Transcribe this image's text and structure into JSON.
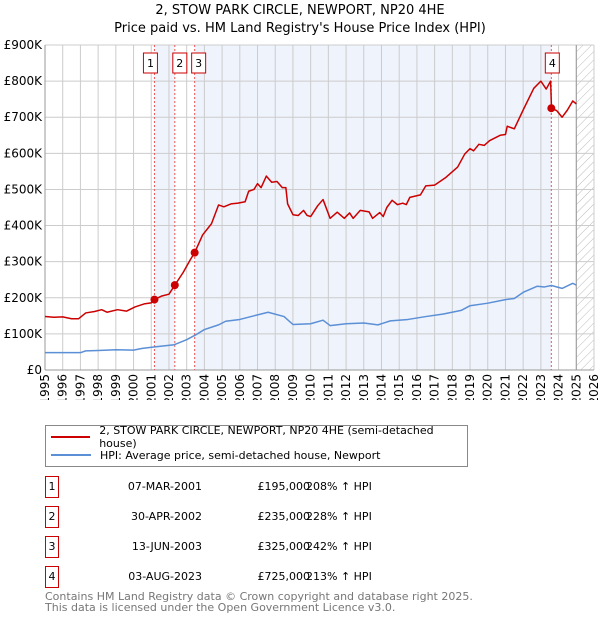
{
  "title_line1": "2, STOW PARK CIRCLE, NEWPORT, NP20 4HE",
  "title_line2": "Price paid vs. HM Land Registry's House Price Index (HPI)",
  "colors": {
    "property": "#cc0000",
    "hpi": "#5b8fd6",
    "shade": "#eef3fc"
  },
  "chart_data": {
    "type": "line",
    "xlim": [
      1995,
      2026
    ],
    "ylim": [
      0,
      900000
    ],
    "y_ticks": [
      {
        "v": 0,
        "label": "£0"
      },
      {
        "v": 100000,
        "label": "£100K"
      },
      {
        "v": 200000,
        "label": "£200K"
      },
      {
        "v": 300000,
        "label": "£300K"
      },
      {
        "v": 400000,
        "label": "£400K"
      },
      {
        "v": 500000,
        "label": "£500K"
      },
      {
        "v": 600000,
        "label": "£600K"
      },
      {
        "v": 700000,
        "label": "£700K"
      },
      {
        "v": 800000,
        "label": "£800K"
      },
      {
        "v": 900000,
        "label": "£900K"
      }
    ],
    "x_ticks": [
      "1995",
      "1996",
      "1997",
      "1998",
      "1999",
      "2000",
      "2001",
      "2002",
      "2003",
      "2004",
      "2005",
      "2006",
      "2007",
      "2008",
      "2009",
      "2010",
      "2011",
      "2012",
      "2013",
      "2014",
      "2015",
      "2016",
      "2017",
      "2018",
      "2019",
      "2020",
      "2021",
      "2022",
      "2023",
      "2024",
      "2025",
      "2026"
    ],
    "data_end_year": 2025,
    "series": [
      {
        "name": "2, STOW PARK CIRCLE, NEWPORT, NP20 4HE (semi-detached house)",
        "color": "#cc0000",
        "points": [
          [
            1995,
            148
          ],
          [
            1995.5,
            146
          ],
          [
            1996,
            147
          ],
          [
            1996.5,
            142
          ],
          [
            1996.9,
            142
          ],
          [
            1997.3,
            158
          ],
          [
            1997.8,
            162
          ],
          [
            1998.2,
            167
          ],
          [
            1998.5,
            160
          ],
          [
            1999.1,
            167
          ],
          [
            1999.6,
            163
          ],
          [
            2000.1,
            175
          ],
          [
            2000.6,
            183
          ],
          [
            2001.0,
            186
          ],
          [
            2001.18,
            195
          ],
          [
            2001.6,
            205
          ],
          [
            2002.0,
            210
          ],
          [
            2002.33,
            235
          ],
          [
            2002.8,
            270
          ],
          [
            2003.2,
            305
          ],
          [
            2003.45,
            325
          ],
          [
            2003.9,
            374
          ],
          [
            2004.4,
            405
          ],
          [
            2004.8,
            457
          ],
          [
            2005.1,
            452
          ],
          [
            2005.5,
            460
          ],
          [
            2005.9,
            462
          ],
          [
            2006.3,
            466
          ],
          [
            2006.5,
            495
          ],
          [
            2006.8,
            500
          ],
          [
            2007.0,
            516
          ],
          [
            2007.2,
            505
          ],
          [
            2007.5,
            537
          ],
          [
            2007.8,
            520
          ],
          [
            2008.1,
            522
          ],
          [
            2008.4,
            505
          ],
          [
            2008.6,
            505
          ],
          [
            2008.7,
            460
          ],
          [
            2009.0,
            430
          ],
          [
            2009.3,
            428
          ],
          [
            2009.6,
            442
          ],
          [
            2009.8,
            428
          ],
          [
            2010.0,
            425
          ],
          [
            2010.4,
            455
          ],
          [
            2010.7,
            472
          ],
          [
            2011.1,
            420
          ],
          [
            2011.5,
            437
          ],
          [
            2011.9,
            420
          ],
          [
            2012.2,
            435
          ],
          [
            2012.4,
            420
          ],
          [
            2012.8,
            442
          ],
          [
            2013.3,
            438
          ],
          [
            2013.5,
            420
          ],
          [
            2013.9,
            436
          ],
          [
            2014.1,
            425
          ],
          [
            2014.3,
            450
          ],
          [
            2014.6,
            470
          ],
          [
            2014.9,
            458
          ],
          [
            2015.2,
            462
          ],
          [
            2015.4,
            458
          ],
          [
            2015.6,
            478
          ],
          [
            2016.2,
            485
          ],
          [
            2016.5,
            510
          ],
          [
            2017.0,
            512
          ],
          [
            2017.6,
            532
          ],
          [
            2018.3,
            562
          ],
          [
            2018.7,
            598
          ],
          [
            2019.0,
            613
          ],
          [
            2019.2,
            607
          ],
          [
            2019.5,
            625
          ],
          [
            2019.8,
            622
          ],
          [
            2020.1,
            635
          ],
          [
            2020.7,
            650
          ],
          [
            2021.0,
            652
          ],
          [
            2021.1,
            675
          ],
          [
            2021.5,
            668
          ],
          [
            2022.0,
            720
          ],
          [
            2022.6,
            780
          ],
          [
            2023.0,
            800
          ],
          [
            2023.3,
            778
          ],
          [
            2023.55,
            800
          ],
          [
            2023.6,
            725
          ],
          [
            2023.9,
            718
          ],
          [
            2024.2,
            700
          ],
          [
            2024.5,
            720
          ],
          [
            2024.8,
            745
          ],
          [
            2025.0,
            737
          ]
        ]
      },
      {
        "name": "HPI: Average price, semi-detached house, Newport",
        "color": "#5b8fd6",
        "points": [
          [
            1995,
            48
          ],
          [
            1996,
            48
          ],
          [
            1997,
            48
          ],
          [
            1997.3,
            53
          ],
          [
            1998,
            54
          ],
          [
            1999,
            56
          ],
          [
            2000,
            55
          ],
          [
            2000.5,
            60
          ],
          [
            2001.2,
            64
          ],
          [
            2002.3,
            70
          ],
          [
            2003,
            84
          ],
          [
            2003.5,
            97
          ],
          [
            2004,
            112
          ],
          [
            2004.8,
            125
          ],
          [
            2005.2,
            135
          ],
          [
            2006,
            140
          ],
          [
            2006.8,
            150
          ],
          [
            2007.6,
            160
          ],
          [
            2008.5,
            148
          ],
          [
            2009,
            126
          ],
          [
            2010,
            128
          ],
          [
            2010.7,
            138
          ],
          [
            2011.1,
            123
          ],
          [
            2012,
            128
          ],
          [
            2013,
            130
          ],
          [
            2013.8,
            125
          ],
          [
            2014.5,
            136
          ],
          [
            2015.5,
            140
          ],
          [
            2016.5,
            148
          ],
          [
            2017.5,
            155
          ],
          [
            2018.5,
            165
          ],
          [
            2019,
            178
          ],
          [
            2020,
            185
          ],
          [
            2021,
            195
          ],
          [
            2021.5,
            198
          ],
          [
            2022,
            215
          ],
          [
            2022.8,
            232
          ],
          [
            2023.2,
            230
          ],
          [
            2023.6,
            234
          ],
          [
            2024.2,
            226
          ],
          [
            2024.8,
            240
          ],
          [
            2025,
            235
          ]
        ]
      }
    ],
    "sales": [
      {
        "label": "1",
        "year": 2001.18,
        "value": 195000
      },
      {
        "label": "2",
        "year": 2002.33,
        "value": 235000
      },
      {
        "label": "3",
        "year": 2003.45,
        "value": 325000
      },
      {
        "label": "4",
        "year": 2023.59,
        "value": 725000
      }
    ]
  },
  "legend": {
    "property": "2, STOW PARK CIRCLE, NEWPORT, NP20 4HE (semi-detached house)",
    "hpi": "HPI: Average price, semi-detached house, Newport"
  },
  "transactions": [
    {
      "num": "1",
      "date": "07-MAR-2001",
      "price": "£195,000",
      "pct": "208% ↑ HPI"
    },
    {
      "num": "2",
      "date": "30-APR-2002",
      "price": "£235,000",
      "pct": "228% ↑ HPI"
    },
    {
      "num": "3",
      "date": "13-JUN-2003",
      "price": "£325,000",
      "pct": "242% ↑ HPI"
    },
    {
      "num": "4",
      "date": "03-AUG-2023",
      "price": "£725,000",
      "pct": "213% ↑ HPI"
    }
  ],
  "footer": {
    "line1": "Contains HM Land Registry data © Crown copyright and database right 2025.",
    "line2": "This data is licensed under the Open Government Licence v3.0."
  }
}
